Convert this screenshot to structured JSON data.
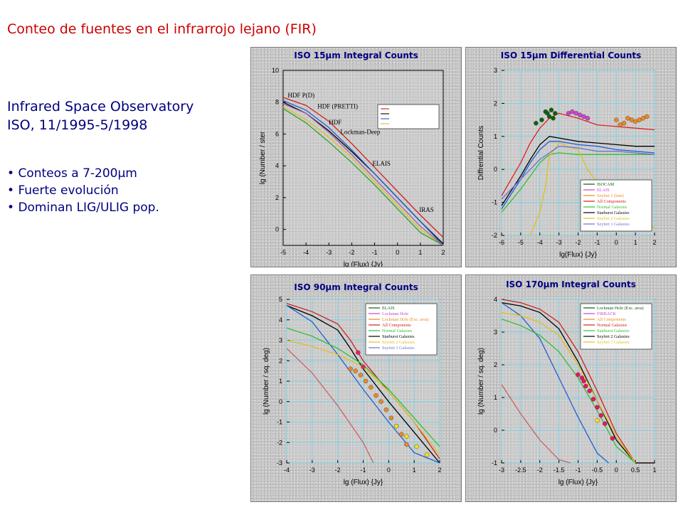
{
  "slide": {
    "title": "Conteo de fuentes en el infrarrojo lejano (FIR)",
    "observatory": "Infrared Space Observatory",
    "dates": "ISO, 11/1995-5/1998",
    "bullets": [
      "Conteos a 7-200μm",
      "Fuerte evolución",
      "Dominan LIG/ULIG pop."
    ]
  },
  "chart_data": [
    {
      "type": "line",
      "title": "ISO 15μm Integral Counts",
      "xlabel": "lg (Flux) {Jy}",
      "ylabel": "lg (Number / ster",
      "xlim": [
        -5,
        2
      ],
      "ylim": [
        -1,
        10
      ],
      "xticks": [
        -5,
        -4,
        -3,
        -2,
        -1,
        0,
        1,
        2
      ],
      "yticks": [
        0,
        2,
        4,
        6,
        8,
        10
      ],
      "grid": false,
      "legend": "top-right",
      "annotations": [
        {
          "text": "HDF P(D)",
          "x": -4.8,
          "y": 8.3
        },
        {
          "text": "HDF (PRETTI)",
          "x": -3.5,
          "y": 7.6
        },
        {
          "text": "HDF",
          "x": -3.0,
          "y": 6.6
        },
        {
          "text": "Lockman-Deep",
          "x": -2.5,
          "y": 6.0
        },
        {
          "text": "ELAIS",
          "x": -1.1,
          "y": 4.0
        },
        {
          "text": "IRAS",
          "x": 0.95,
          "y": 1.1
        }
      ],
      "series": [
        {
          "color": "#d02020",
          "x": [
            -5,
            -4,
            -3,
            -2,
            -1,
            0,
            1,
            2
          ],
          "values": [
            8.3,
            7.8,
            6.8,
            5.4,
            3.9,
            2.4,
            0.9,
            -0.5
          ]
        },
        {
          "color": "#000000",
          "x": [
            -5,
            -4,
            -3,
            -2,
            -1,
            0,
            1,
            2
          ],
          "values": [
            8.0,
            7.3,
            6.2,
            4.9,
            3.5,
            2.0,
            0.5,
            -0.9
          ]
        },
        {
          "color": "#1f5fd0",
          "x": [
            -5,
            -4,
            -3,
            -2,
            -1,
            0,
            1,
            2
          ],
          "values": [
            8.1,
            7.5,
            6.4,
            5.0,
            3.5,
            2.0,
            0.5,
            -1.0
          ]
        },
        {
          "color": "#e0c020",
          "x": [
            -5,
            -4,
            -3,
            -2,
            -1,
            0,
            1,
            2
          ],
          "values": [
            7.7,
            6.9,
            5.8,
            4.5,
            3.0,
            1.5,
            0.0,
            -1.0
          ]
        },
        {
          "color": "#30a030",
          "x": [
            -5,
            -4,
            -3,
            -2,
            -1,
            0,
            1,
            2
          ],
          "values": [
            7.6,
            6.7,
            5.5,
            4.2,
            2.8,
            1.3,
            -0.2,
            -1.0
          ]
        },
        {
          "color": "#9c5fb0",
          "x": [
            -5,
            -4,
            -3,
            -2,
            -1,
            0,
            1,
            2
          ],
          "values": [
            7.9,
            7.3,
            6.1,
            4.7,
            3.2,
            1.7,
            0.2,
            -1.0
          ]
        }
      ]
    },
    {
      "type": "line",
      "title": "ISO 15μm Differential Counts",
      "xlabel": "lg(Flux) {Jy}",
      "ylabel": "Diffrential Counts",
      "xlim": [
        -6,
        2
      ],
      "ylim": [
        -2,
        3
      ],
      "xticks": [
        -6,
        -5,
        -4,
        -3,
        -2,
        -1,
        0,
        1,
        2
      ],
      "yticks": [
        -2,
        -1,
        0,
        1,
        2,
        3
      ],
      "grid": true,
      "legend": "bottom-right",
      "legend_entries": [
        "ISOCAM",
        "ELAIS",
        "Seyfert 1 (lum)",
        "All Components",
        "Normal Galaxies",
        "Starburst Galaxies",
        "Seyfert 2 Galaxies",
        "Seyfert 1 Galaxies"
      ],
      "series": [
        {
          "color": "#e02020",
          "x": [
            -6,
            -5,
            -4.5,
            -4,
            -3.5,
            -3,
            -2,
            -1,
            0,
            1,
            2
          ],
          "values": [
            -0.8,
            0.2,
            0.8,
            1.25,
            1.55,
            1.7,
            1.55,
            1.35,
            1.3,
            1.25,
            1.2
          ]
        },
        {
          "color": "#000000",
          "x": [
            -6,
            -5,
            -4.5,
            -4,
            -3.5,
            -3,
            -2,
            -1,
            0,
            1,
            2
          ],
          "values": [
            -1.1,
            -0.2,
            0.3,
            0.75,
            1.0,
            0.95,
            0.85,
            0.8,
            0.75,
            0.7,
            0.7
          ]
        },
        {
          "color": "#1f5fd0",
          "x": [
            -6,
            -5,
            -4.5,
            -4,
            -3.5,
            -3,
            -2,
            -1,
            0,
            1,
            2
          ],
          "values": [
            -1.2,
            -0.3,
            0.2,
            0.6,
            0.85,
            0.85,
            0.75,
            0.7,
            0.6,
            0.55,
            0.5
          ]
        },
        {
          "color": "#30c030",
          "x": [
            -6,
            -5,
            -4.5,
            -4,
            -3.5,
            -3,
            -2,
            -1,
            0,
            1,
            2
          ],
          "values": [
            -1.3,
            -0.6,
            -0.2,
            0.2,
            0.45,
            0.5,
            0.45,
            0.45,
            0.45,
            0.45,
            0.45
          ]
        },
        {
          "color": "#e0c020",
          "x": [
            -4.5,
            -4,
            -3.7,
            -3.5,
            -3,
            -2,
            -1.5,
            -1,
            0,
            1,
            2
          ],
          "values": [
            -2.0,
            -1.3,
            -0.5,
            0.4,
            0.8,
            0.6,
            0.0,
            -0.4,
            -0.7,
            -1.2,
            -1.8
          ]
        },
        {
          "color": "#7070d0",
          "x": [
            -6,
            -5,
            -4,
            -3,
            -2,
            -1,
            0,
            1,
            2
          ],
          "values": [
            -0.9,
            -0.3,
            0.3,
            0.7,
            0.65,
            0.55,
            0.55,
            0.5,
            0.45
          ]
        }
      ],
      "points": [
        {
          "name": "ISOCAM",
          "color": "#106010",
          "x": [
            -4.2,
            -3.9,
            -3.7,
            -3.6,
            -3.5,
            -3.4,
            -3.3,
            -3.2
          ],
          "values": [
            1.4,
            1.5,
            1.75,
            1.7,
            1.6,
            1.8,
            1.55,
            1.7
          ]
        },
        {
          "name": "ELAIS",
          "color": "#cc44cc",
          "x": [
            -2.5,
            -2.3,
            -2.1,
            -1.9,
            -1.7,
            -1.5
          ],
          "values": [
            1.7,
            1.75,
            1.7,
            1.65,
            1.6,
            1.55
          ]
        },
        {
          "color": "#ee8822",
          "x": [
            0.0,
            0.2,
            0.4,
            0.6,
            0.8,
            1.0,
            1.2,
            1.4,
            1.6
          ],
          "values": [
            1.5,
            1.35,
            1.4,
            1.55,
            1.5,
            1.45,
            1.5,
            1.55,
            1.6
          ]
        }
      ]
    },
    {
      "type": "line",
      "title": "ISO 90μm Integral Counts",
      "xlabel": "lg (Flux) {Jy}",
      "ylabel": "lg (Number / sq. deg)",
      "xlim": [
        -4,
        2
      ],
      "ylim": [
        -3,
        5
      ],
      "xticks": [
        -4,
        -3,
        -2,
        -1,
        0,
        1,
        2
      ],
      "yticks": [
        -3,
        -2,
        -1,
        0,
        1,
        2,
        3,
        4,
        5
      ],
      "grid": true,
      "legend": "top-right",
      "legend_entries": [
        "ELAIS",
        "Lockman Hole",
        "Lockman Hole (Exc. area)",
        "All Components",
        "Normal Galaxies",
        "Starburst Galaxies",
        "Seyfert 2 Galaxies",
        "Seyfert 1 Galaxies"
      ],
      "series": [
        {
          "color": "#d02020",
          "x": [
            -4,
            -3,
            -2,
            -1.5,
            -1,
            0,
            1,
            2
          ],
          "values": [
            4.8,
            4.4,
            3.8,
            3.0,
            2.0,
            0.5,
            -1.0,
            -2.8
          ]
        },
        {
          "color": "#000000",
          "x": [
            -4,
            -3,
            -2,
            -1.5,
            -1,
            0,
            1,
            2
          ],
          "values": [
            4.7,
            4.2,
            3.5,
            2.6,
            1.6,
            0.0,
            -1.5,
            -3.0
          ]
        },
        {
          "color": "#1f5fd0",
          "x": [
            -4,
            -3,
            -2,
            -1,
            0,
            1,
            2
          ],
          "values": [
            4.7,
            3.9,
            2.3,
            0.6,
            -1.0,
            -2.5,
            -3.0
          ]
        },
        {
          "color": "#30c030",
          "x": [
            -4,
            -3,
            -2,
            -1,
            0,
            1,
            2
          ],
          "values": [
            3.6,
            3.2,
            2.6,
            1.8,
            0.6,
            -0.8,
            -2.2
          ]
        },
        {
          "color": "#e0c020",
          "x": [
            -4,
            -3,
            -2,
            -1,
            0,
            1,
            2
          ],
          "values": [
            3.0,
            2.7,
            2.3,
            1.7,
            0.5,
            -1.0,
            -2.6
          ]
        },
        {
          "color": "#d06060",
          "x": [
            -4,
            -3,
            -2,
            -1,
            -0.6
          ],
          "values": [
            2.6,
            1.4,
            -0.2,
            -2.0,
            -3.0
          ]
        }
      ],
      "points": [
        {
          "name": "ELAIS",
          "color": "#ee8822",
          "x": [
            -1.5,
            -1.3,
            -1.1,
            -0.9,
            -0.7,
            -0.5,
            -0.3,
            -0.1,
            0.1,
            0.3,
            0.5,
            0.7
          ],
          "values": [
            1.6,
            1.5,
            1.3,
            1.0,
            0.7,
            0.3,
            0.0,
            -0.4,
            -0.8,
            -1.2,
            -1.6,
            -2.1
          ]
        },
        {
          "name": "Lockman Hole",
          "color": "#ee2266",
          "x": [
            -1.2,
            -1.0
          ],
          "values": [
            2.4,
            1.7
          ]
        },
        {
          "color": "#f0e020",
          "x": [
            0.3,
            0.7,
            1.1,
            1.5
          ],
          "values": [
            -1.2,
            -1.7,
            -2.2,
            -2.6
          ]
        }
      ]
    },
    {
      "type": "line",
      "title": "ISO 170μm Integral Counts",
      "xlabel": "lg (Flux) {Jy}",
      "ylabel": "lg (Number / sq. deg)",
      "xlim": [
        -3,
        1
      ],
      "ylim": [
        -1,
        4
      ],
      "xticks": [
        -3,
        -2.5,
        -2,
        -1.5,
        -1,
        -0.5,
        0,
        0.5,
        1
      ],
      "yticks": [
        -1,
        0,
        1,
        2,
        3,
        4
      ],
      "grid": true,
      "legend": "top-right",
      "legend_entries": [
        "Lockman Hole (Exc. area)",
        "FIRBACK",
        "All Components",
        "Normal Galaxies",
        "Starburst Galaxies",
        "Seyfert 2 Galaxies",
        "Seyfert 1 Galaxies"
      ],
      "series": [
        {
          "color": "#d02020",
          "x": [
            -3,
            -2.5,
            -2,
            -1.5,
            -1,
            -0.5,
            0,
            0.5,
            1
          ],
          "values": [
            4.0,
            3.9,
            3.7,
            3.3,
            2.4,
            1.2,
            -0.1,
            -1.0,
            -1.0
          ]
        },
        {
          "color": "#000000",
          "x": [
            -3,
            -2.5,
            -2,
            -1.5,
            -1,
            -0.5,
            0,
            0.5,
            1
          ],
          "values": [
            3.9,
            3.8,
            3.6,
            3.1,
            2.1,
            0.9,
            -0.3,
            -1.0,
            -1.0
          ]
        },
        {
          "color": "#1f5fd0",
          "x": [
            -3,
            -2.5,
            -2,
            -1.5,
            -1,
            -0.5,
            -0.2
          ],
          "values": [
            3.9,
            3.5,
            2.8,
            1.6,
            0.4,
            -0.7,
            -1.0
          ]
        },
        {
          "color": "#30c030",
          "x": [
            -3,
            -2.5,
            -2,
            -1.5,
            -1,
            -0.5,
            0,
            0.5
          ],
          "values": [
            3.4,
            3.2,
            2.9,
            2.4,
            1.6,
            0.6,
            -0.5,
            -1.0
          ]
        },
        {
          "color": "#e0c020",
          "x": [
            -3,
            -2.5,
            -2,
            -1.5,
            -1,
            -0.5,
            0,
            0.5
          ],
          "values": [
            3.6,
            3.5,
            3.3,
            2.9,
            2.0,
            0.9,
            -0.2,
            -1.0
          ]
        },
        {
          "color": "#d06060",
          "x": [
            -3,
            -2.5,
            -2,
            -1.5,
            -1.2
          ],
          "values": [
            1.4,
            0.5,
            -0.3,
            -0.9,
            -1.0
          ]
        }
      ],
      "points": [
        {
          "name": "FIRBACK",
          "color": "#ee1166",
          "x": [
            -1.0,
            -0.9,
            -0.85,
            -0.8,
            -0.7,
            -0.6,
            -0.5,
            -0.4,
            -0.3,
            -0.1
          ],
          "values": [
            1.7,
            1.6,
            1.5,
            1.35,
            1.2,
            0.95,
            0.7,
            0.45,
            0.2,
            -0.25
          ]
        },
        {
          "color": "#f0e020",
          "x": [
            -0.5
          ],
          "values": [
            0.3
          ]
        }
      ]
    }
  ]
}
